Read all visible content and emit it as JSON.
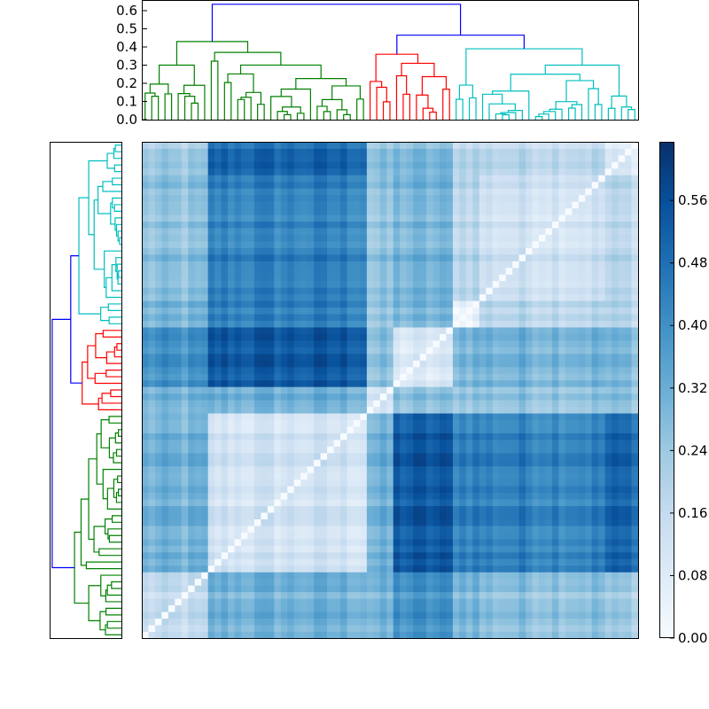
{
  "chart_data": {
    "type": "heatmap",
    "title": "",
    "description_free": true,
    "colormap": "Blues",
    "value_range": [
      0.0,
      0.635
    ],
    "colorbar": {
      "ticks": [
        0.0,
        0.08,
        0.16,
        0.24,
        0.32,
        0.4,
        0.48,
        0.56
      ],
      "tick_labels": [
        "0.00",
        "0.08",
        "0.16",
        "0.24",
        "0.32",
        "0.40",
        "0.48",
        "0.56"
      ]
    },
    "top_dendrogram": {
      "ylim": [
        0,
        0.65
      ],
      "ticks": [
        0.0,
        0.1,
        0.2,
        0.3,
        0.4,
        0.5,
        0.6
      ],
      "tick_labels": [
        "0.0",
        "0.1",
        "0.2",
        "0.3",
        "0.4",
        "0.5",
        "0.6"
      ]
    },
    "clusters": [
      {
        "id": "A",
        "leaves": 10,
        "height": 0.3,
        "color": "#008000"
      },
      {
        "id": "B",
        "leaves": 24,
        "height": 0.37,
        "color": "#008000"
      },
      {
        "id": "C",
        "leaves": 4,
        "height": 0.21,
        "color": "#ff0000"
      },
      {
        "id": "D",
        "leaves": 9,
        "height": 0.31,
        "color": "#ff0000"
      },
      {
        "id": "E",
        "leaves": 4,
        "height": 0.19,
        "color": "#00bfbf"
      },
      {
        "id": "F",
        "leaves": 19,
        "height": 0.25,
        "color": "#00bfbf"
      },
      {
        "id": "G",
        "leaves": 5,
        "height": 0.13,
        "color": "#00bfbf"
      }
    ],
    "linkage": {
      "h": 0.635,
      "color": "#0000ff",
      "children": [
        {
          "h": 0.43,
          "color": "#008000",
          "children": [
            "A",
            "B"
          ]
        },
        {
          "h": 0.465,
          "color": "#0000ff",
          "children": [
            {
              "h": 0.36,
              "color": "#ff0000",
              "children": [
                "C",
                "D"
              ]
            },
            {
              "h": 0.39,
              "color": "#00bfbf",
              "children": [
                "E",
                {
                  "h": 0.3,
                  "color": "#00bfbf",
                  "children": [
                    "F",
                    "G"
                  ]
                }
              ]
            }
          ]
        }
      ]
    },
    "block_means": [
      [
        0.14,
        0.3,
        0.28,
        0.38,
        0.3,
        0.26,
        0.22
      ],
      [
        0.3,
        0.12,
        0.3,
        0.53,
        0.45,
        0.44,
        0.5
      ],
      [
        0.28,
        0.3,
        0.1,
        0.25,
        0.25,
        0.25,
        0.25
      ],
      [
        0.38,
        0.53,
        0.25,
        0.08,
        0.3,
        0.3,
        0.28
      ],
      [
        0.3,
        0.45,
        0.25,
        0.3,
        0.06,
        0.2,
        0.2
      ],
      [
        0.26,
        0.44,
        0.25,
        0.3,
        0.2,
        0.14,
        0.18
      ],
      [
        0.22,
        0.5,
        0.25,
        0.28,
        0.2,
        0.18,
        0.08
      ]
    ]
  }
}
